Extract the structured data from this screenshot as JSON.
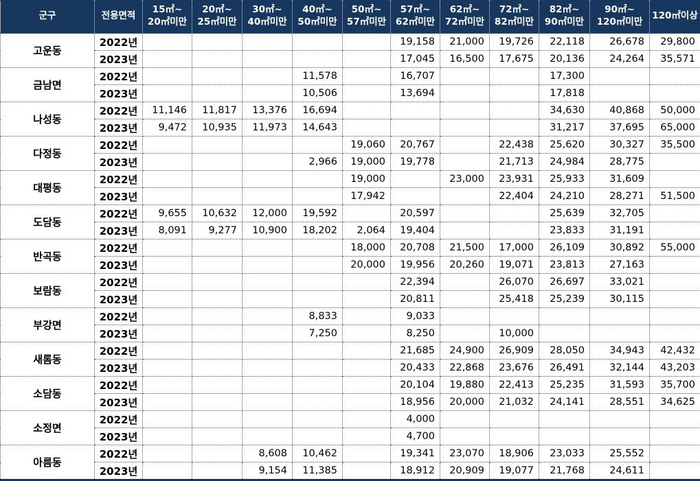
{
  "colors": {
    "header_bg": "#17375e",
    "header_text": "#ffffff",
    "body_text": "#000000",
    "grid_border": "#595959",
    "outer_bottom_border": "#17375e"
  },
  "chart_data": {
    "type": "table",
    "corner_headers": [
      "군구",
      "전용면적"
    ],
    "area_columns": [
      "15㎡~\n20㎡미만",
      "20㎡~\n25㎡미만",
      "30㎡~\n40㎡미만",
      "40㎡~\n50㎡미만",
      "50㎡~\n57㎡미만",
      "57㎡~\n62㎡미만",
      "62㎡~\n72㎡미만",
      "72㎡~\n82㎡미만",
      "82㎡~\n90㎡미만",
      "90㎡~\n120㎡미만",
      "120㎡이상"
    ],
    "year_labels": [
      "2022년",
      "2023년"
    ],
    "districts": [
      {
        "name": "고운동",
        "rows": [
          {
            "year": "2022년",
            "values": [
              "",
              "",
              "",
              "",
              "",
              "19,158",
              "21,000",
              "19,726",
              "22,118",
              "26,678",
              "29,800"
            ]
          },
          {
            "year": "2023년",
            "values": [
              "",
              "",
              "",
              "",
              "",
              "17,045",
              "16,500",
              "17,675",
              "20,136",
              "24,264",
              "35,571"
            ]
          }
        ]
      },
      {
        "name": "금남면",
        "rows": [
          {
            "year": "2022년",
            "values": [
              "",
              "",
              "",
              "11,578",
              "",
              "16,707",
              "",
              "",
              "17,300",
              "",
              ""
            ]
          },
          {
            "year": "2023년",
            "values": [
              "",
              "",
              "",
              "10,506",
              "",
              "13,694",
              "",
              "",
              "17,818",
              "",
              ""
            ]
          }
        ]
      },
      {
        "name": "나성동",
        "rows": [
          {
            "year": "2022년",
            "values": [
              "11,146",
              "11,817",
              "13,376",
              "16,694",
              "",
              "",
              "",
              "",
              "34,630",
              "40,868",
              "50,000"
            ]
          },
          {
            "year": "2023년",
            "values": [
              "9,472",
              "10,935",
              "11,973",
              "14,643",
              "",
              "",
              "",
              "",
              "31,217",
              "37,695",
              "65,000"
            ]
          }
        ]
      },
      {
        "name": "다정동",
        "rows": [
          {
            "year": "2022년",
            "values": [
              "",
              "",
              "",
              "",
              "19,060",
              "20,767",
              "",
              "22,438",
              "25,620",
              "30,327",
              "35,500"
            ]
          },
          {
            "year": "2023년",
            "values": [
              "",
              "",
              "",
              "2,966",
              "19,000",
              "19,778",
              "",
              "21,713",
              "24,984",
              "28,775",
              ""
            ]
          }
        ]
      },
      {
        "name": "대평동",
        "rows": [
          {
            "year": "2022년",
            "values": [
              "",
              "",
              "",
              "",
              "19,000",
              "",
              "23,000",
              "23,931",
              "25,933",
              "31,609",
              ""
            ]
          },
          {
            "year": "2023년",
            "values": [
              "",
              "",
              "",
              "",
              "17,942",
              "",
              "",
              "22,404",
              "24,210",
              "28,271",
              "51,500"
            ]
          }
        ]
      },
      {
        "name": "도담동",
        "rows": [
          {
            "year": "2022년",
            "values": [
              "9,655",
              "10,632",
              "12,000",
              "19,592",
              "",
              "20,597",
              "",
              "",
              "25,639",
              "32,705",
              ""
            ]
          },
          {
            "year": "2023년",
            "values": [
              "8,091",
              "9,277",
              "10,900",
              "18,202",
              "2,064",
              "19,404",
              "",
              "",
              "23,833",
              "31,191",
              ""
            ]
          }
        ]
      },
      {
        "name": "반곡동",
        "rows": [
          {
            "year": "2022년",
            "values": [
              "",
              "",
              "",
              "",
              "18,000",
              "20,708",
              "21,500",
              "17,000",
              "26,109",
              "30,892",
              "55,000"
            ]
          },
          {
            "year": "2023년",
            "values": [
              "",
              "",
              "",
              "",
              "20,000",
              "19,956",
              "20,260",
              "19,071",
              "23,813",
              "27,163",
              ""
            ]
          }
        ]
      },
      {
        "name": "보람동",
        "rows": [
          {
            "year": "2022년",
            "values": [
              "",
              "",
              "",
              "",
              "",
              "22,394",
              "",
              "26,070",
              "26,697",
              "33,021",
              ""
            ]
          },
          {
            "year": "2023년",
            "values": [
              "",
              "",
              "",
              "",
              "",
              "20,811",
              "",
              "25,418",
              "25,239",
              "30,115",
              ""
            ]
          }
        ]
      },
      {
        "name": "부강면",
        "rows": [
          {
            "year": "2022년",
            "values": [
              "",
              "",
              "",
              "8,833",
              "",
              "9,033",
              "",
              "",
              "",
              "",
              ""
            ]
          },
          {
            "year": "2023년",
            "values": [
              "",
              "",
              "",
              "7,250",
              "",
              "8,250",
              "",
              "10,000",
              "",
              "",
              ""
            ]
          }
        ]
      },
      {
        "name": "새롬동",
        "rows": [
          {
            "year": "2022년",
            "values": [
              "",
              "",
              "",
              "",
              "",
              "21,685",
              "24,900",
              "26,909",
              "28,050",
              "34,943",
              "42,432"
            ]
          },
          {
            "year": "2023년",
            "values": [
              "",
              "",
              "",
              "",
              "",
              "20,433",
              "22,868",
              "23,676",
              "26,491",
              "32,144",
              "43,203"
            ]
          }
        ]
      },
      {
        "name": "소담동",
        "rows": [
          {
            "year": "2022년",
            "values": [
              "",
              "",
              "",
              "",
              "",
              "20,104",
              "19,880",
              "22,413",
              "25,235",
              "31,593",
              "35,700"
            ]
          },
          {
            "year": "2023년",
            "values": [
              "",
              "",
              "",
              "",
              "",
              "18,956",
              "20,000",
              "21,032",
              "24,141",
              "28,551",
              "34,625"
            ]
          }
        ]
      },
      {
        "name": "소정면",
        "rows": [
          {
            "year": "2022년",
            "values": [
              "",
              "",
              "",
              "",
              "",
              "4,000",
              "",
              "",
              "",
              "",
              ""
            ]
          },
          {
            "year": "2023년",
            "values": [
              "",
              "",
              "",
              "",
              "",
              "4,700",
              "",
              "",
              "",
              "",
              ""
            ]
          }
        ]
      },
      {
        "name": "아름동",
        "rows": [
          {
            "year": "2022년",
            "values": [
              "",
              "",
              "8,608",
              "10,462",
              "",
              "19,341",
              "23,070",
              "18,906",
              "23,033",
              "25,552",
              ""
            ]
          },
          {
            "year": "2023년",
            "values": [
              "",
              "",
              "9,154",
              "11,385",
              "",
              "18,912",
              "20,909",
              "19,077",
              "21,768",
              "24,611",
              ""
            ]
          }
        ]
      }
    ]
  }
}
